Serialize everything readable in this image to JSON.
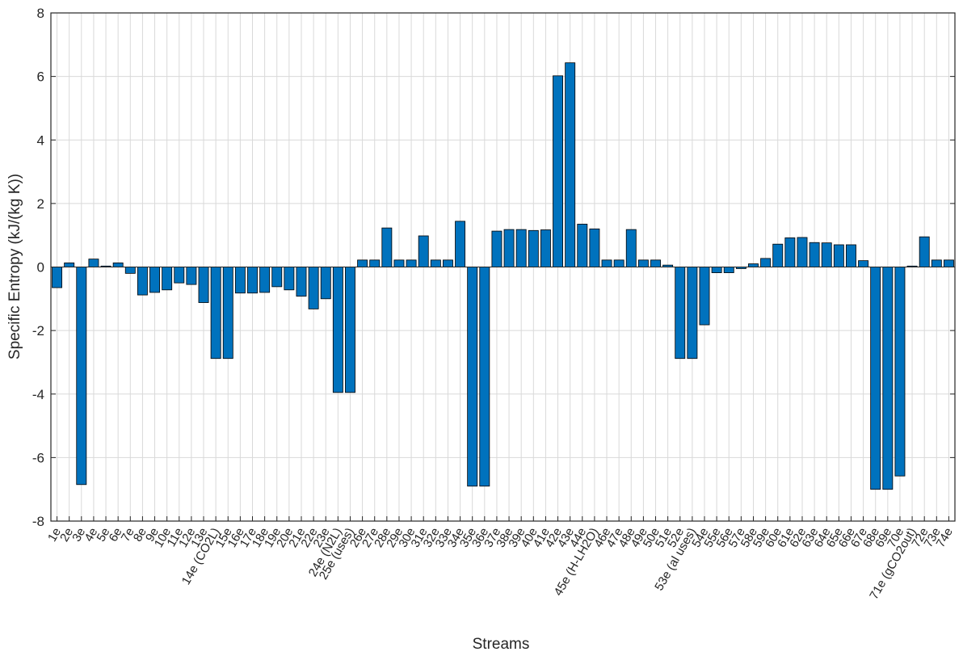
{
  "chart_data": {
    "type": "bar",
    "title": "",
    "xlabel": "Streams",
    "ylabel": "Specific Entropy (kJ/(kg K))",
    "ylim": [
      -8,
      8
    ],
    "yticks": [
      -8,
      -6,
      -4,
      -2,
      0,
      2,
      4,
      6,
      8
    ],
    "grid": true,
    "bar_color": "#0072BD",
    "categories": [
      "1e",
      "2e",
      "3e",
      "4e",
      "5e",
      "6e",
      "7e",
      "8e",
      "9e",
      "10e",
      "11e",
      "12e",
      "13e",
      "14e (CO2L)",
      "15e",
      "16e",
      "17e",
      "18e",
      "19e",
      "20e",
      "21e",
      "22e",
      "23e",
      "24e (N2L)",
      "25e (uses)",
      "26e",
      "27e",
      "28e",
      "29e",
      "30e",
      "31e",
      "32e",
      "33e",
      "34e",
      "35e",
      "36e",
      "37e",
      "38e",
      "39e",
      "40e",
      "41e",
      "42e",
      "43e",
      "44e",
      "45e (H-LH2O)",
      "46e",
      "47e",
      "48e",
      "49e",
      "50e",
      "51e",
      "52e",
      "53e (al uses)",
      "54e",
      "55e",
      "56e",
      "57e",
      "58e",
      "59e",
      "60e",
      "61e",
      "62e",
      "63e",
      "64e",
      "65e",
      "66e",
      "67e",
      "68e",
      "69e",
      "70e",
      "71e (gCO2out)",
      "72e",
      "73e",
      "74e"
    ],
    "values": [
      -0.65,
      0.13,
      -6.85,
      0.25,
      0.03,
      0.13,
      -0.2,
      -0.88,
      -0.8,
      -0.72,
      -0.5,
      -0.55,
      -1.12,
      -2.88,
      -2.88,
      -0.82,
      -0.82,
      -0.8,
      -0.62,
      -0.72,
      -0.92,
      -1.32,
      -1.0,
      -3.95,
      -3.95,
      0.22,
      0.22,
      1.23,
      0.22,
      0.22,
      0.98,
      0.22,
      0.22,
      1.44,
      -6.9,
      -6.9,
      1.13,
      1.18,
      1.18,
      1.15,
      1.17,
      6.02,
      6.43,
      1.35,
      1.2,
      0.22,
      0.22,
      1.18,
      0.22,
      0.22,
      0.06,
      -2.88,
      -2.88,
      -1.82,
      -0.18,
      -0.18,
      -0.05,
      0.1,
      0.27,
      0.72,
      0.92,
      0.93,
      0.77,
      0.76,
      0.7,
      0.7,
      0.2,
      -7.0,
      -7.0,
      -6.58,
      0.03,
      0.95,
      0.22,
      0.22
    ]
  }
}
